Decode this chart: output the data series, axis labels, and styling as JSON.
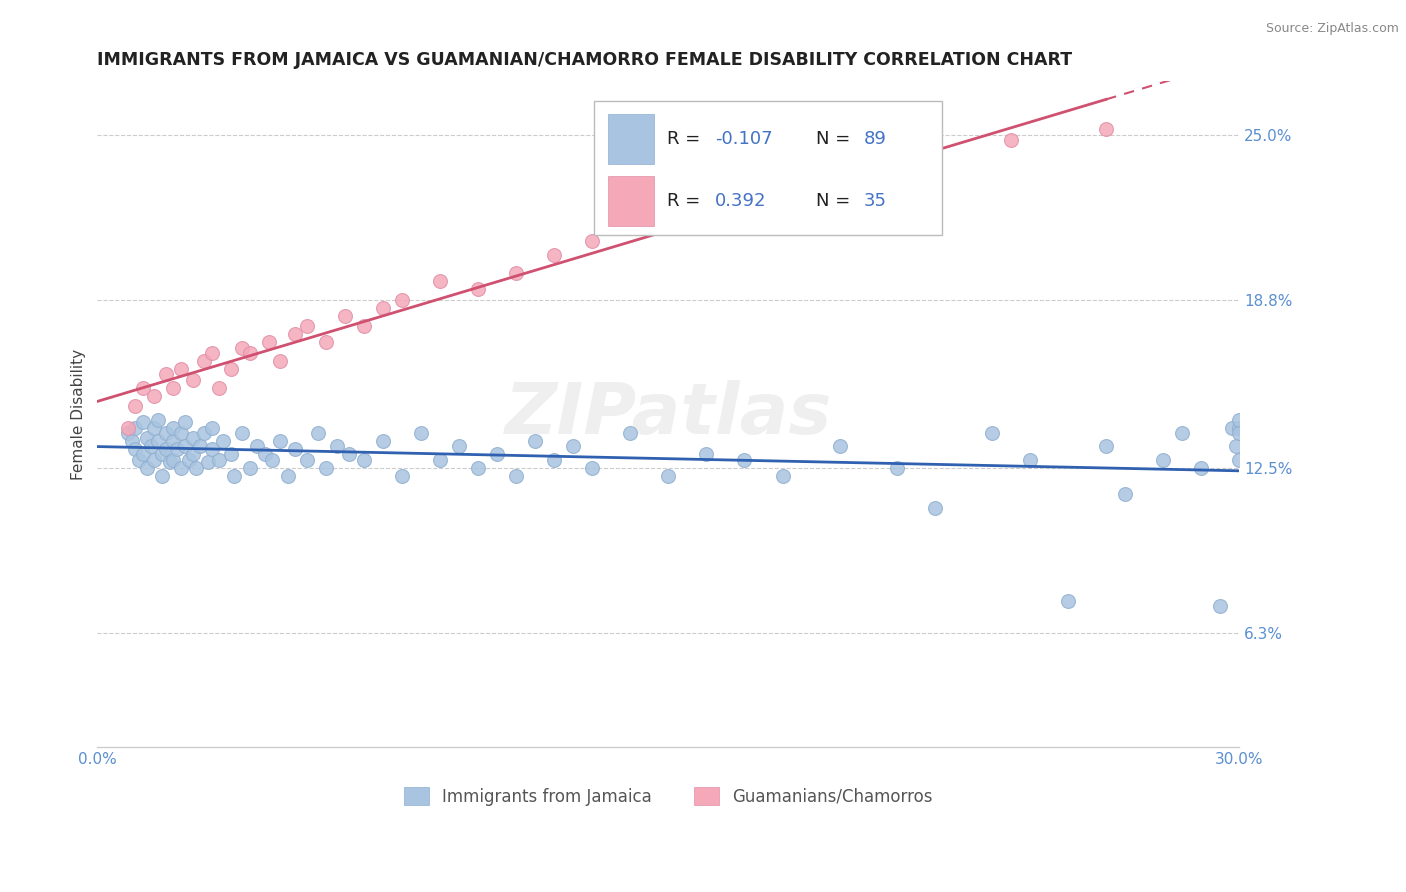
{
  "title": "IMMIGRANTS FROM JAMAICA VS GUAMANIAN/CHAMORRO FEMALE DISABILITY CORRELATION CHART",
  "source": "Source: ZipAtlas.com",
  "ylabel": "Female Disability",
  "series1_label": "Immigrants from Jamaica",
  "series2_label": "Guamanians/Chamorros",
  "color1": "#a8c4e0",
  "color2": "#f4a8b8",
  "trendline1_color": "#3060b0",
  "trendline2_color": "#d05070",
  "r1_text": "-0.107",
  "n1_text": "89",
  "r2_text": "0.392",
  "n2_text": "35",
  "xlim": [
    0.0,
    0.3
  ],
  "ylim": [
    0.02,
    0.27
  ],
  "x_ticks": [
    0.0,
    0.05,
    0.1,
    0.15,
    0.2,
    0.25,
    0.3
  ],
  "x_tick_labels": [
    "0.0%",
    "",
    "",
    "",
    "",
    "",
    "30.0%"
  ],
  "y_ticks": [
    0.063,
    0.125,
    0.188,
    0.25
  ],
  "y_tick_labels": [
    "6.3%",
    "12.5%",
    "18.8%",
    "25.0%"
  ],
  "axis_label_color": "#5a8fd0",
  "background_color": "#ffffff",
  "grid_color": "#cccccc",
  "jamaica_x": [
    0.008,
    0.009,
    0.01,
    0.01,
    0.011,
    0.012,
    0.012,
    0.013,
    0.013,
    0.014,
    0.015,
    0.015,
    0.016,
    0.016,
    0.017,
    0.017,
    0.018,
    0.018,
    0.019,
    0.02,
    0.02,
    0.02,
    0.021,
    0.022,
    0.022,
    0.023,
    0.023,
    0.024,
    0.025,
    0.025,
    0.026,
    0.027,
    0.028,
    0.029,
    0.03,
    0.03,
    0.032,
    0.033,
    0.035,
    0.036,
    0.038,
    0.04,
    0.042,
    0.044,
    0.046,
    0.048,
    0.05,
    0.052,
    0.055,
    0.058,
    0.06,
    0.063,
    0.066,
    0.07,
    0.075,
    0.08,
    0.085,
    0.09,
    0.095,
    0.1,
    0.105,
    0.11,
    0.115,
    0.12,
    0.125,
    0.13,
    0.14,
    0.15,
    0.16,
    0.17,
    0.18,
    0.195,
    0.21,
    0.22,
    0.235,
    0.245,
    0.255,
    0.265,
    0.27,
    0.28,
    0.285,
    0.29,
    0.295,
    0.298,
    0.299,
    0.3,
    0.3,
    0.3,
    0.3
  ],
  "jamaica_y": [
    0.138,
    0.135,
    0.132,
    0.14,
    0.128,
    0.13,
    0.142,
    0.136,
    0.125,
    0.133,
    0.14,
    0.128,
    0.135,
    0.143,
    0.13,
    0.122,
    0.138,
    0.132,
    0.127,
    0.135,
    0.14,
    0.128,
    0.132,
    0.138,
    0.125,
    0.133,
    0.142,
    0.128,
    0.136,
    0.13,
    0.125,
    0.133,
    0.138,
    0.127,
    0.132,
    0.14,
    0.128,
    0.135,
    0.13,
    0.122,
    0.138,
    0.125,
    0.133,
    0.13,
    0.128,
    0.135,
    0.122,
    0.132,
    0.128,
    0.138,
    0.125,
    0.133,
    0.13,
    0.128,
    0.135,
    0.122,
    0.138,
    0.128,
    0.133,
    0.125,
    0.13,
    0.122,
    0.135,
    0.128,
    0.133,
    0.125,
    0.138,
    0.122,
    0.13,
    0.128,
    0.122,
    0.133,
    0.125,
    0.11,
    0.138,
    0.128,
    0.075,
    0.133,
    0.115,
    0.128,
    0.138,
    0.125,
    0.073,
    0.14,
    0.133,
    0.14,
    0.143,
    0.138,
    0.128
  ],
  "guam_x": [
    0.008,
    0.01,
    0.012,
    0.015,
    0.018,
    0.02,
    0.022,
    0.025,
    0.028,
    0.03,
    0.032,
    0.035,
    0.038,
    0.04,
    0.045,
    0.048,
    0.052,
    0.055,
    0.06,
    0.065,
    0.07,
    0.075,
    0.08,
    0.09,
    0.1,
    0.11,
    0.12,
    0.13,
    0.14,
    0.15,
    0.165,
    0.19,
    0.21,
    0.24,
    0.265
  ],
  "guam_y": [
    0.14,
    0.148,
    0.155,
    0.152,
    0.16,
    0.155,
    0.162,
    0.158,
    0.165,
    0.168,
    0.155,
    0.162,
    0.17,
    0.168,
    0.172,
    0.165,
    0.175,
    0.178,
    0.172,
    0.182,
    0.178,
    0.185,
    0.188,
    0.195,
    0.192,
    0.198,
    0.205,
    0.21,
    0.215,
    0.218,
    0.222,
    0.232,
    0.24,
    0.248,
    0.252
  ]
}
